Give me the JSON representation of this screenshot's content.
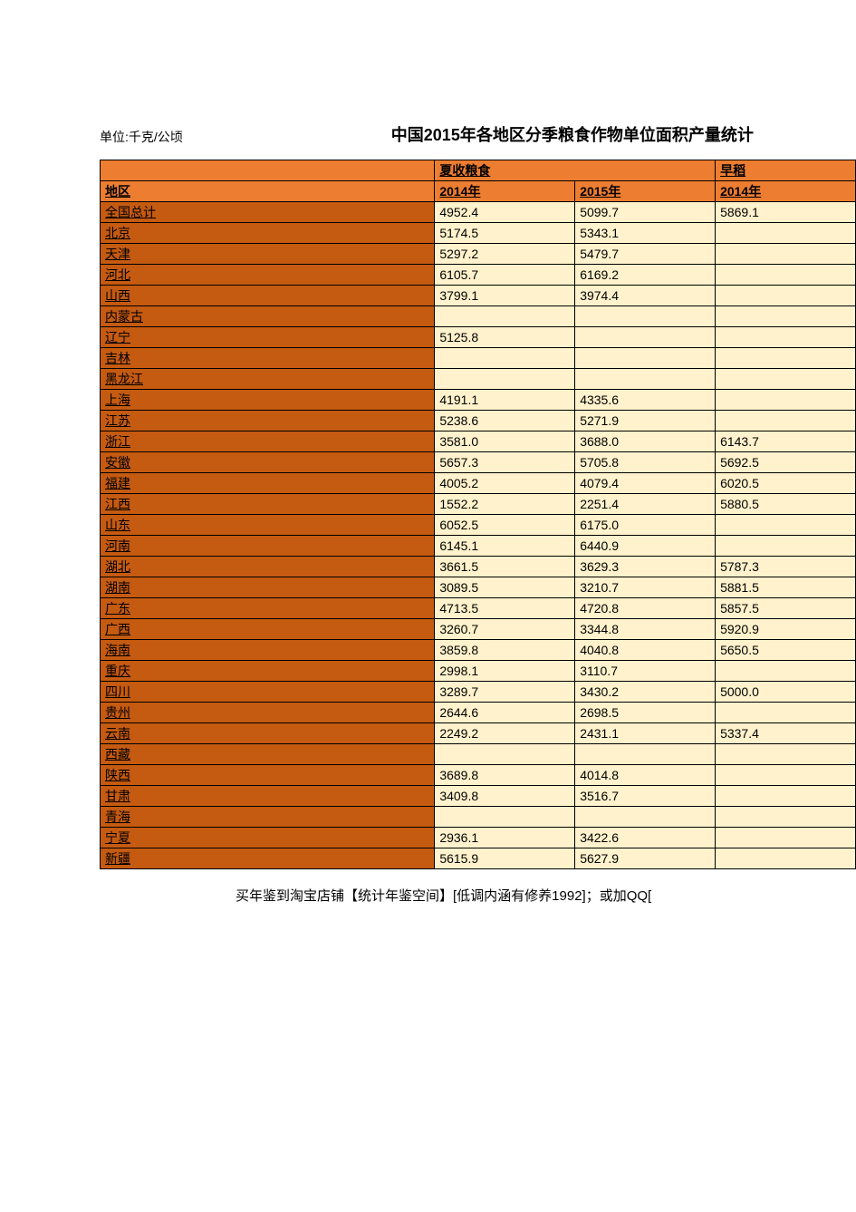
{
  "unit_label": "单位:千克/公顷",
  "title": "中国2015年各地区分季粮食作物单位面积产量统计",
  "header_row1": {
    "region_blank": "",
    "summer_grain": "夏收粮食",
    "early_rice": "早稻"
  },
  "header_row2": {
    "region": "地区",
    "year_2014_a": "2014年",
    "year_2015": "2015年",
    "year_2014_b": "2014年"
  },
  "rows": [
    {
      "region": "全国总计",
      "v1": "4952.4",
      "v2": "5099.7",
      "v3": "5869.1"
    },
    {
      "region": "北京",
      "v1": "5174.5",
      "v2": "5343.1",
      "v3": ""
    },
    {
      "region": "天津",
      "v1": "5297.2",
      "v2": "5479.7",
      "v3": ""
    },
    {
      "region": "河北",
      "v1": "6105.7",
      "v2": "6169.2",
      "v3": ""
    },
    {
      "region": "山西",
      "v1": "3799.1",
      "v2": "3974.4",
      "v3": ""
    },
    {
      "region": "内蒙古",
      "v1": "",
      "v2": "",
      "v3": ""
    },
    {
      "region": "辽宁",
      "v1": "5125.8",
      "v2": "",
      "v3": ""
    },
    {
      "region": "吉林",
      "v1": "",
      "v2": "",
      "v3": ""
    },
    {
      "region": "黑龙江",
      "v1": "",
      "v2": "",
      "v3": ""
    },
    {
      "region": "上海",
      "v1": "4191.1",
      "v2": "4335.6",
      "v3": ""
    },
    {
      "region": "江苏",
      "v1": "5238.6",
      "v2": "5271.9",
      "v3": ""
    },
    {
      "region": "浙江",
      "v1": "3581.0",
      "v2": "3688.0",
      "v3": "6143.7"
    },
    {
      "region": "安徽",
      "v1": "5657.3",
      "v2": "5705.8",
      "v3": "5692.5"
    },
    {
      "region": "福建",
      "v1": "4005.2",
      "v2": "4079.4",
      "v3": "6020.5"
    },
    {
      "region": "江西",
      "v1": "1552.2",
      "v2": "2251.4",
      "v3": "5880.5"
    },
    {
      "region": "山东",
      "v1": "6052.5",
      "v2": "6175.0",
      "v3": ""
    },
    {
      "region": "河南",
      "v1": "6145.1",
      "v2": "6440.9",
      "v3": ""
    },
    {
      "region": "湖北",
      "v1": "3661.5",
      "v2": "3629.3",
      "v3": "5787.3"
    },
    {
      "region": "湖南",
      "v1": "3089.5",
      "v2": "3210.7",
      "v3": "5881.5"
    },
    {
      "region": "广东",
      "v1": "4713.5",
      "v2": "4720.8",
      "v3": "5857.5"
    },
    {
      "region": "广西",
      "v1": "3260.7",
      "v2": "3344.8",
      "v3": "5920.9"
    },
    {
      "region": "海南",
      "v1": "3859.8",
      "v2": "4040.8",
      "v3": "5650.5"
    },
    {
      "region": "重庆",
      "v1": "2998.1",
      "v2": "3110.7",
      "v3": ""
    },
    {
      "region": "四川",
      "v1": "3289.7",
      "v2": "3430.2",
      "v3": "5000.0"
    },
    {
      "region": "贵州",
      "v1": "2644.6",
      "v2": "2698.5",
      "v3": ""
    },
    {
      "region": "云南",
      "v1": "2249.2",
      "v2": "2431.1",
      "v3": "5337.4"
    },
    {
      "region": "西藏",
      "v1": "",
      "v2": "",
      "v3": ""
    },
    {
      "region": "陕西",
      "v1": "3689.8",
      "v2": "4014.8",
      "v3": ""
    },
    {
      "region": "甘肃",
      "v1": "3409.8",
      "v2": "3516.7",
      "v3": ""
    },
    {
      "region": "青海",
      "v1": "",
      "v2": "",
      "v3": ""
    },
    {
      "region": "宁夏",
      "v1": "2936.1",
      "v2": "3422.6",
      "v3": ""
    },
    {
      "region": "新疆",
      "v1": "5615.9",
      "v2": "5627.9",
      "v3": ""
    }
  ],
  "footer": "买年鉴到淘宝店铺【统计年鉴空间】[低调内涵有修养1992]；或加QQ[",
  "colors": {
    "header_bg": "#ed7d31",
    "region_bg": "#c55a11",
    "data_bg": "#fff2cc",
    "border": "#000000",
    "page_bg": "#ffffff",
    "text": "#000000"
  }
}
